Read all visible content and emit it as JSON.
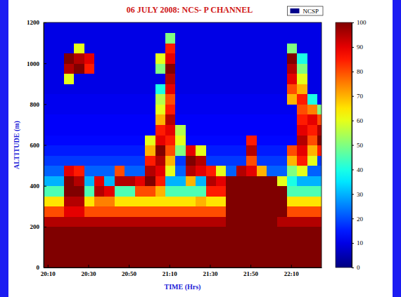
{
  "chart_data": {
    "type": "heatmap",
    "title": "06 JULY 2008: NCS- P CHANNEL",
    "x_label": "TIME (Hrs)",
    "y_label": "ALTITUDE (m)",
    "legend": "upper right",
    "legend_entries": [
      {
        "name": "NCSP",
        "color": "#00008b"
      }
    ],
    "xlim": [
      1208,
      1345
    ],
    "xticks": [
      {
        "value": 1210,
        "label": "20:10"
      },
      {
        "value": 1230,
        "label": "20:30"
      },
      {
        "value": 1250,
        "label": "20:50"
      },
      {
        "value": 1270,
        "label": "21:10"
      },
      {
        "value": 1290,
        "label": "21:30"
      },
      {
        "value": 1310,
        "label": "21:50"
      },
      {
        "value": 1330,
        "label": "22:10"
      }
    ],
    "ylim": [
      0,
      1200
    ],
    "yticks": [
      0,
      200,
      400,
      600,
      800,
      1000,
      1200
    ],
    "x": [
      1208,
      1213,
      1218,
      1223,
      1228,
      1233,
      1238,
      1243,
      1248,
      1253,
      1258,
      1263,
      1268,
      1273,
      1278,
      1283,
      1288,
      1293,
      1298,
      1303,
      1308,
      1313,
      1318,
      1323,
      1328,
      1333,
      1338,
      1343
    ],
    "y": [
      0,
      50,
      100,
      150,
      200,
      250,
      300,
      350,
      400,
      450,
      500,
      550,
      600,
      650,
      700,
      750,
      800,
      850,
      900,
      950,
      1000,
      1050,
      1100,
      1150
    ],
    "z": [
      [
        100,
        100,
        100,
        100,
        100,
        100,
        100,
        100,
        100,
        100,
        100,
        100,
        100,
        100,
        100,
        100,
        100,
        100,
        100,
        100,
        100,
        100,
        100,
        100,
        100,
        100,
        100,
        100
      ],
      [
        100,
        100,
        100,
        100,
        100,
        100,
        100,
        100,
        100,
        100,
        100,
        100,
        100,
        100,
        100,
        100,
        100,
        100,
        100,
        100,
        100,
        100,
        100,
        100,
        100,
        100,
        100,
        100
      ],
      [
        100,
        100,
        100,
        100,
        100,
        100,
        100,
        100,
        100,
        100,
        100,
        100,
        100,
        100,
        100,
        100,
        100,
        100,
        100,
        100,
        100,
        100,
        100,
        100,
        100,
        100,
        100,
        100
      ],
      [
        100,
        100,
        100,
        100,
        100,
        100,
        100,
        100,
        100,
        100,
        100,
        100,
        100,
        100,
        100,
        100,
        100,
        100,
        100,
        100,
        100,
        100,
        100,
        100,
        100,
        100,
        100,
        100
      ],
      [
        95,
        95,
        95,
        95,
        95,
        95,
        95,
        95,
        95,
        95,
        95,
        95,
        95,
        95,
        95,
        95,
        95,
        95,
        100,
        100,
        100,
        100,
        100,
        95,
        95,
        95,
        95,
        95
      ],
      [
        80,
        80,
        90,
        90,
        80,
        80,
        80,
        80,
        80,
        80,
        80,
        80,
        80,
        80,
        80,
        80,
        80,
        80,
        100,
        100,
        100,
        100,
        100,
        100,
        80,
        80,
        80,
        80
      ],
      [
        65,
        65,
        95,
        95,
        65,
        75,
        75,
        65,
        65,
        65,
        65,
        65,
        65,
        65,
        65,
        70,
        65,
        65,
        100,
        100,
        100,
        100,
        100,
        100,
        65,
        65,
        65,
        65
      ],
      [
        45,
        45,
        100,
        100,
        45,
        95,
        90,
        45,
        45,
        80,
        80,
        70,
        45,
        45,
        45,
        45,
        85,
        85,
        100,
        100,
        100,
        100,
        100,
        100,
        45,
        45,
        45,
        45
      ],
      [
        30,
        30,
        100,
        95,
        30,
        90,
        30,
        95,
        95,
        90,
        100,
        85,
        30,
        30,
        70,
        30,
        95,
        90,
        100,
        100,
        100,
        100,
        100,
        60,
        40,
        30,
        30,
        30
      ],
      [
        22,
        22,
        90,
        85,
        22,
        22,
        22,
        80,
        22,
        22,
        95,
        90,
        60,
        22,
        95,
        90,
        85,
        60,
        22,
        95,
        90,
        70,
        22,
        22,
        50,
        60,
        22,
        22
      ],
      [
        18,
        18,
        18,
        18,
        18,
        18,
        18,
        18,
        18,
        18,
        85,
        95,
        70,
        18,
        100,
        95,
        18,
        18,
        18,
        18,
        80,
        18,
        18,
        18,
        70,
        85,
        60,
        18
      ],
      [
        15,
        15,
        15,
        15,
        15,
        15,
        15,
        15,
        15,
        15,
        70,
        100,
        80,
        50,
        90,
        60,
        15,
        15,
        15,
        15,
        95,
        15,
        15,
        15,
        80,
        90,
        70,
        85
      ],
      [
        13,
        13,
        13,
        13,
        13,
        13,
        13,
        13,
        13,
        13,
        60,
        90,
        85,
        60,
        13,
        13,
        13,
        13,
        13,
        13,
        85,
        13,
        13,
        13,
        13,
        95,
        80,
        100
      ],
      [
        12,
        12,
        12,
        12,
        12,
        12,
        12,
        12,
        12,
        12,
        12,
        85,
        90,
        55,
        12,
        12,
        12,
        12,
        12,
        12,
        12,
        12,
        12,
        12,
        12,
        90,
        85,
        95
      ],
      [
        12,
        12,
        12,
        12,
        12,
        12,
        12,
        12,
        12,
        12,
        12,
        70,
        95,
        12,
        12,
        12,
        12,
        12,
        12,
        12,
        12,
        12,
        12,
        12,
        12,
        85,
        90,
        80
      ],
      [
        11,
        11,
        11,
        11,
        11,
        11,
        11,
        11,
        11,
        11,
        11,
        60,
        85,
        11,
        11,
        11,
        11,
        11,
        11,
        11,
        11,
        11,
        11,
        11,
        11,
        80,
        75,
        50
      ],
      [
        11,
        11,
        11,
        11,
        11,
        11,
        11,
        11,
        11,
        11,
        11,
        55,
        80,
        11,
        11,
        11,
        11,
        11,
        11,
        11,
        11,
        11,
        11,
        11,
        70,
        85,
        40,
        11
      ],
      [
        10,
        10,
        10,
        10,
        10,
        10,
        10,
        10,
        10,
        10,
        10,
        40,
        90,
        10,
        10,
        10,
        10,
        10,
        10,
        10,
        10,
        10,
        10,
        10,
        80,
        70,
        10,
        10
      ],
      [
        10,
        10,
        60,
        10,
        10,
        10,
        10,
        10,
        10,
        10,
        10,
        10,
        95,
        10,
        10,
        10,
        10,
        10,
        10,
        10,
        10,
        10,
        10,
        10,
        90,
        60,
        10,
        10
      ],
      [
        10,
        10,
        95,
        100,
        85,
        10,
        10,
        10,
        10,
        10,
        10,
        50,
        100,
        10,
        10,
        10,
        10,
        10,
        10,
        10,
        10,
        10,
        10,
        10,
        95,
        50,
        10,
        10
      ],
      [
        10,
        10,
        100,
        95,
        90,
        10,
        10,
        10,
        10,
        10,
        10,
        60,
        90,
        10,
        10,
        10,
        10,
        10,
        10,
        10,
        10,
        10,
        10,
        10,
        100,
        40,
        10,
        10
      ],
      [
        10,
        10,
        10,
        60,
        10,
        10,
        10,
        10,
        10,
        10,
        10,
        10,
        85,
        10,
        10,
        10,
        10,
        10,
        10,
        10,
        10,
        10,
        10,
        10,
        50,
        10,
        10,
        10
      ],
      [
        10,
        10,
        10,
        10,
        10,
        10,
        10,
        10,
        10,
        10,
        10,
        10,
        50,
        10,
        10,
        10,
        10,
        10,
        10,
        10,
        10,
        10,
        10,
        10,
        10,
        10,
        10,
        10
      ],
      [
        10,
        10,
        10,
        10,
        10,
        10,
        10,
        10,
        10,
        10,
        10,
        10,
        10,
        10,
        10,
        10,
        10,
        10,
        10,
        10,
        10,
        10,
        10,
        10,
        10,
        10,
        10,
        10
      ]
    ],
    "colorbar_range": [
      0,
      100
    ],
    "colorbar_ticks": [
      0,
      10,
      20,
      30,
      40,
      50,
      60,
      70,
      80,
      90,
      100
    ]
  }
}
